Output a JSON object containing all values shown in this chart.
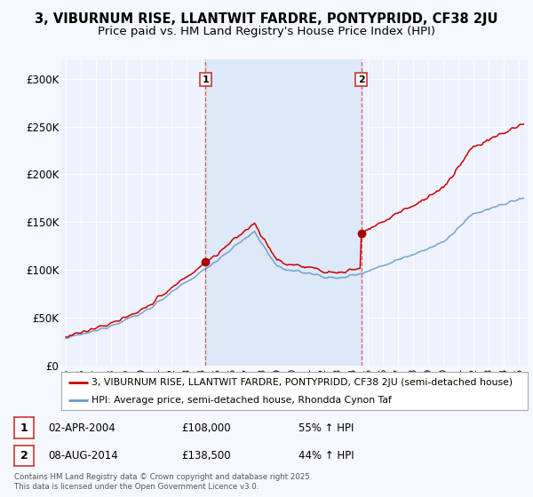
{
  "title": "3, VIBURNUM RISE, LLANTWIT FARDRE, PONTYPRIDD, CF38 2JU",
  "subtitle": "Price paid vs. HM Land Registry's House Price Index (HPI)",
  "ylim": [
    0,
    320000
  ],
  "yticks": [
    0,
    50000,
    100000,
    150000,
    200000,
    250000,
    300000
  ],
  "ytick_labels": [
    "£0",
    "£50K",
    "£100K",
    "£150K",
    "£200K",
    "£250K",
    "£300K"
  ],
  "bg_color": "#f5f8ff",
  "plot_bg_color": "#eef2ff",
  "shade_color": "#dde8f8",
  "grid_color": "#ffffff",
  "line1_color": "#cc0000",
  "line2_color": "#6699cc",
  "vline_color": "#cc3333",
  "legend1": "3, VIBURNUM RISE, LLANTWIT FARDRE, PONTYPRIDD, CF38 2JU (semi-detached house)",
  "legend2": "HPI: Average price, semi-detached house, Rhondda Cynon Taf",
  "footer": "Contains HM Land Registry data © Crown copyright and database right 2025.\nThis data is licensed under the Open Government Licence v3.0.",
  "title_fontsize": 10.5,
  "subtitle_fontsize": 9.5,
  "year_start": 1995,
  "year_end": 2025,
  "purchase1_year": 2004.25,
  "purchase1_price": 108000,
  "purchase2_year": 2014.58,
  "purchase2_price": 138500
}
